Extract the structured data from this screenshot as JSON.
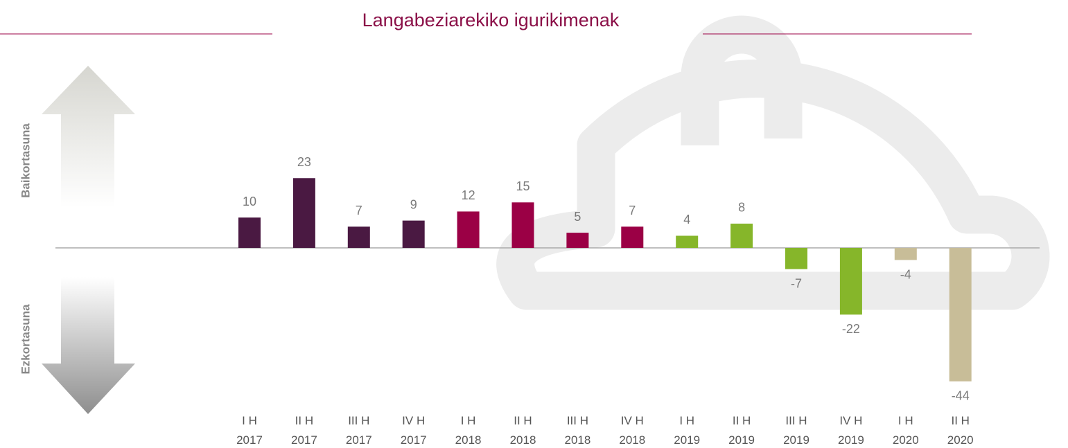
{
  "chart_data": {
    "type": "bar",
    "title": "Langabeziarekiko igurikimenak",
    "positive_label": "Baikortasuna",
    "negative_label": "Ezkortasuna",
    "categories": [
      [
        "I H",
        "2017"
      ],
      [
        "II H",
        "2017"
      ],
      [
        "III H",
        "2017"
      ],
      [
        "IV H",
        "2017"
      ],
      [
        "I H",
        "2018"
      ],
      [
        "II H",
        "2018"
      ],
      [
        "III H",
        "2018"
      ],
      [
        "IV H",
        "2018"
      ],
      [
        "I H",
        "2019"
      ],
      [
        "II H",
        "2019"
      ],
      [
        "III H",
        "2019"
      ],
      [
        "IV H",
        "2019"
      ],
      [
        "I H",
        "2020"
      ],
      [
        "II H",
        "2020"
      ]
    ],
    "values": [
      10,
      23,
      7,
      9,
      12,
      15,
      5,
      7,
      4,
      8,
      -7,
      -22,
      -4,
      -44
    ],
    "colors": [
      "#4a1942",
      "#4a1942",
      "#4a1942",
      "#4a1942",
      "#9b0045",
      "#9b0045",
      "#9b0045",
      "#9b0045",
      "#86b62a",
      "#86b62a",
      "#86b62a",
      "#86b62a",
      "#c8bd98",
      "#c8bd98"
    ]
  }
}
